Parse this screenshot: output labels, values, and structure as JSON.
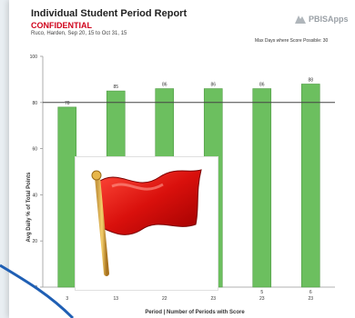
{
  "header": {
    "title": "Individual Student Period Report",
    "confidential": "CONFIDENTIAL",
    "subtitle": "Ruco, Harden, Sep 20, 15 to Oct 31, 15",
    "logo_text": "PBISApps",
    "note": "Max Days where Score Possible: 30"
  },
  "colors": {
    "bar": "#6cbf5f",
    "bar_edge": "#4f9a44",
    "reference_line": "#444444",
    "confidential": "#d0021b",
    "arc": "#1f5fb4"
  },
  "chart_data": {
    "type": "bar",
    "ylabel": "Avg Daily % of Total Points",
    "xlabel": "Period | Number of Periods with Score",
    "ylim": [
      0,
      100
    ],
    "yticks": [
      0,
      20,
      40,
      60,
      80,
      100
    ],
    "reference_line": 80,
    "categories": [
      {
        "top": "",
        "bottom": "3"
      },
      {
        "top": "",
        "bottom": "13"
      },
      {
        "top": "",
        "bottom": "22"
      },
      {
        "top": "",
        "bottom": "23"
      },
      {
        "top": "5",
        "bottom": "23"
      },
      {
        "top": "6",
        "bottom": "23"
      }
    ],
    "values": [
      78,
      85,
      86,
      86,
      86,
      88
    ],
    "value_labels": [
      "78",
      "85",
      "86",
      "86",
      "86",
      "88"
    ]
  },
  "overlay": {
    "icon": "red-flag-icon"
  }
}
